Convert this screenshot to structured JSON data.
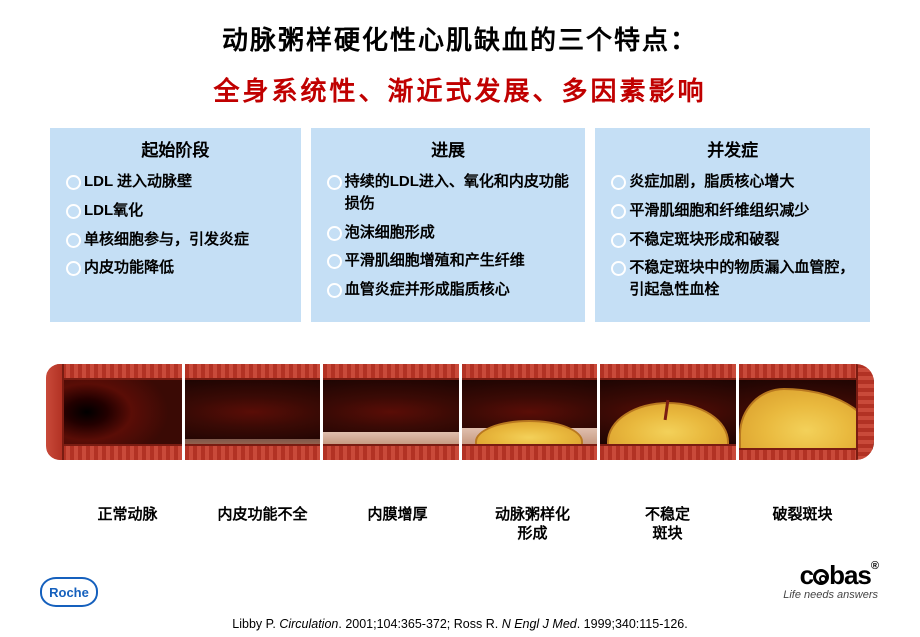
{
  "title": "动脉粥样硬化性心肌缺血的三个特点：",
  "subtitle": "全身系统性、渐近式发展、多因素影响",
  "panels": [
    {
      "title": "起始阶段",
      "items": [
        "LDL 进入动脉壁",
        "LDL氧化",
        "单核细胞参与，引发炎症",
        "内皮功能降低"
      ]
    },
    {
      "title": "进展",
      "items": [
        "持续的LDL进入、氧化和内皮功能损伤",
        "泡沫细胞形成",
        "平滑肌细胞增殖和产生纤维",
        "血管炎症并形成脂质核心"
      ]
    },
    {
      "title": "并发症",
      "items": [
        "炎症加剧，脂质核心增大",
        "平滑肌细胞和纤维组织减少",
        "不稳定斑块形成和破裂",
        "不稳定斑块中的物质漏入血管腔，引起急性血栓"
      ]
    }
  ],
  "stages": [
    "正常动脉",
    "内皮功能不全",
    "内膜增厚",
    "动脉粥样化\n形成",
    "不稳定\n斑块",
    "破裂斑块"
  ],
  "citation": {
    "prefix": "Libby P. ",
    "j1": "Circulation",
    "mid1": ". 2001;104:365-372; Ross R. ",
    "j2": "N Engl J Med",
    "mid2": ". 1999;340:115-126."
  },
  "roche": "Roche",
  "cobas": {
    "brand_prefix": "c",
    "brand_suffix": "bas",
    "tag": "Life needs answers",
    "reg": "®"
  },
  "colors": {
    "panel_bg": "#c5dff5",
    "subtitle": "#c00000",
    "artery_wall_dark": "#b23224",
    "artery_wall_light": "#c94a3a",
    "plaque": "#e9b93e",
    "roche_blue": "#1560bd"
  }
}
